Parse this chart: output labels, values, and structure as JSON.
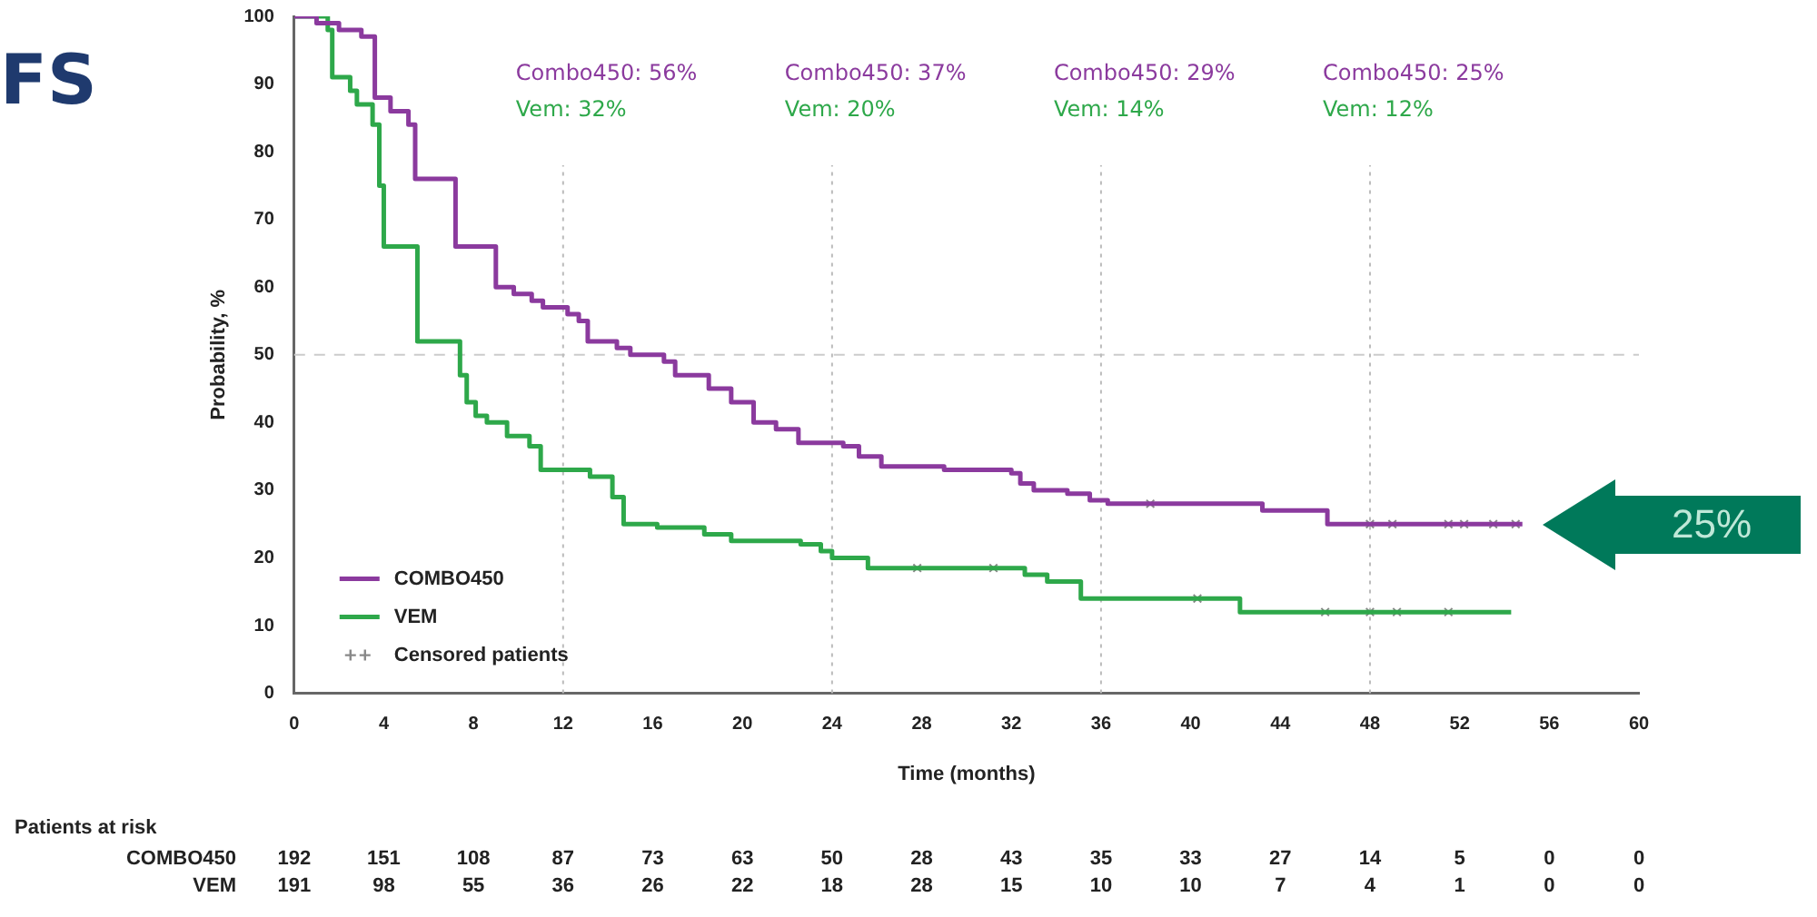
{
  "chart_data": {
    "type": "step",
    "title": "FS",
    "xlabel": "Time (months)",
    "ylabel": "Probability, %",
    "xlim": [
      0,
      60
    ],
    "xticks": [
      0,
      4,
      8,
      12,
      16,
      20,
      24,
      28,
      32,
      36,
      40,
      44,
      48,
      52,
      56,
      60
    ],
    "ylim": [
      0,
      100
    ],
    "yticks": [
      0,
      10,
      20,
      30,
      40,
      50,
      60,
      70,
      80,
      90,
      100
    ],
    "grid": false,
    "legend": "bottom left",
    "series": [
      {
        "name": "COMBO450",
        "color": "#8b3a9e",
        "x": [
          0,
          1,
          2,
          3,
          3.6,
          4.3,
          5.1,
          5.4,
          7.2,
          9,
          9.8,
          10.6,
          11.1,
          12.2,
          12.7,
          13.1,
          14.4,
          15,
          16.5,
          17,
          18.5,
          19.5,
          20.5,
          21.5,
          22.5,
          24.5,
          25.2,
          26.2,
          29,
          32,
          32.4,
          33,
          34.5,
          35.5,
          36.3,
          43.2,
          46.1,
          54.8
        ],
        "values": [
          100,
          99,
          98,
          97,
          88,
          86,
          84,
          76,
          66,
          60,
          59,
          58,
          57,
          56,
          55,
          52,
          51,
          50,
          49,
          47,
          45,
          43,
          40,
          39,
          37,
          36.5,
          35,
          33.5,
          33,
          32.5,
          31,
          30,
          29.5,
          28.5,
          28,
          27,
          25,
          25
        ]
      },
      {
        "name": "VEM",
        "color": "#2ea84a",
        "x": [
          0,
          1.5,
          1.7,
          2.5,
          2.8,
          3.5,
          3.8,
          4.0,
          5.5,
          7.4,
          7.7,
          8.1,
          8.6,
          9.5,
          10.5,
          11,
          13.2,
          14.2,
          14.7,
          16.2,
          18.3,
          19.5,
          22.6,
          23.5,
          24,
          25.6,
          32.6,
          33.6,
          35.1,
          42.2,
          54.3
        ],
        "values": [
          100,
          98,
          91,
          89,
          87,
          84,
          75,
          66,
          52,
          47,
          43,
          41,
          40,
          38,
          36.5,
          33,
          32,
          29,
          25,
          24.5,
          23.5,
          22.5,
          22,
          21,
          20,
          18.5,
          17.5,
          16.5,
          14,
          12,
          12
        ]
      },
      {
        "name": "Censored patients",
        "type": "scatter",
        "marker": "cross",
        "color": "#888888",
        "x": [
          38.2,
          48,
          49,
          51.5,
          52.2,
          53.5,
          54.5,
          27.8,
          31.2,
          40.3,
          46,
          48,
          49.2,
          51.5
        ],
        "values": [
          28,
          25,
          25,
          25,
          25,
          25,
          25,
          18.5,
          18.5,
          14,
          12,
          12,
          12,
          12
        ]
      }
    ],
    "ref_lines": [
      {
        "axis": "y",
        "value": 50,
        "color": "#cccccc",
        "line_style": "dashed"
      },
      {
        "axis": "x",
        "value": 12,
        "color": "#bbbbbb",
        "line_style": "dotted"
      },
      {
        "axis": "x",
        "value": 24,
        "color": "#bbbbbb",
        "line_style": "dotted"
      },
      {
        "axis": "x",
        "value": 36,
        "color": "#bbbbbb",
        "line_style": "dotted"
      },
      {
        "axis": "x",
        "value": 48,
        "color": "#bbbbbb",
        "line_style": "dotted"
      }
    ],
    "annotations": [
      "Combo450: 56%",
      "Vem: 32%",
      "Combo450: 37%",
      "Vem: 20%",
      "Combo450: 29%",
      "Vem: 14%",
      "Combo450: 25%",
      "Vem: 12%",
      "25%",
      "Patients at risk",
      "COMBO450",
      "192",
      "151",
      "108",
      "87",
      "73",
      "63",
      "50",
      "28",
      "43",
      "35",
      "33",
      "27",
      "14",
      "5",
      "0",
      "0",
      "VEM",
      "191",
      "98",
      "55",
      "36",
      "26",
      "22",
      "18",
      "28",
      "15",
      "10",
      "10",
      "7",
      "4",
      "1",
      "0",
      "0"
    ]
  }
}
